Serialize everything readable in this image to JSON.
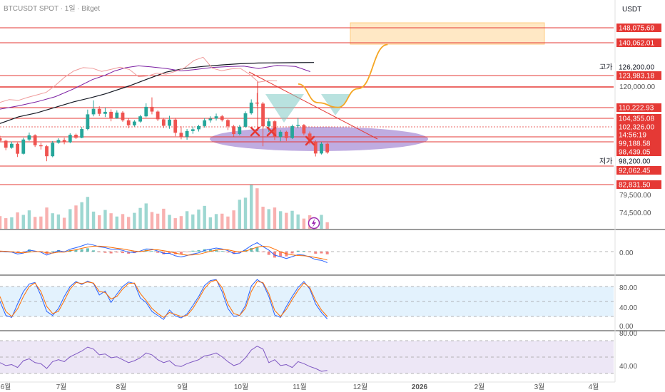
{
  "header": {
    "title": "BTCUSDT SPOT · 1일 · Bitget",
    "currency": "USDT"
  },
  "colors": {
    "up": "#26a69a",
    "down": "#ef5350",
    "level": "#e53935",
    "sma_long": "#131722",
    "sma_mid": "#7b1fa2",
    "sma_short": "#ef9a9a",
    "projection": "#f5a623",
    "zone": "#ffe0b2",
    "ellipse": "#9575cd",
    "shoulder": "#80cbc4",
    "macd": "#2962ff",
    "signal": "#ff6d00",
    "stoch_k": "#2962ff",
    "stoch_d": "#ff6d00",
    "rsi": "#7e57c2",
    "stoch_bg": "#e3f2fd",
    "rsi_bg": "#ede7f6",
    "label_dark": "#131722"
  },
  "chart_data": {
    "type": "candlestick",
    "x_range": [
      "2025-05-28",
      "2026-04-08"
    ],
    "y_range_price": [
      72000,
      152000
    ],
    "candles": [
      [
        "2025-05-28",
        108000,
        109000,
        106800,
        107000
      ],
      [
        "2025-05-31",
        107000,
        107400,
        103200,
        104200
      ],
      [
        "2025-06-03",
        104200,
        106700,
        103800,
        105800
      ],
      [
        "2025-06-06",
        105800,
        106300,
        100500,
        101800
      ],
      [
        "2025-06-09",
        101800,
        108200,
        101500,
        107500
      ],
      [
        "2025-06-12",
        107500,
        110300,
        106900,
        109200
      ],
      [
        "2025-06-15",
        109200,
        109600,
        104500,
        105200
      ],
      [
        "2025-06-18",
        105200,
        106200,
        103500,
        104800
      ],
      [
        "2025-06-21",
        104800,
        105300,
        98800,
        100800
      ],
      [
        "2025-06-24",
        100800,
        106900,
        100400,
        106200
      ],
      [
        "2025-06-27",
        106200,
        108000,
        105800,
        107300
      ],
      [
        "2025-06-30",
        107300,
        108200,
        105600,
        106400
      ],
      [
        "2025-07-03",
        106400,
        110000,
        106000,
        109400
      ],
      [
        "2025-07-06",
        109400,
        109900,
        107700,
        108200
      ],
      [
        "2025-07-09",
        108200,
        112500,
        108000,
        111700
      ],
      [
        "2025-07-12",
        111700,
        119500,
        111200,
        117600
      ],
      [
        "2025-07-15",
        117600,
        123200,
        116800,
        119800
      ],
      [
        "2025-07-18",
        119800,
        120800,
        116900,
        117800
      ],
      [
        "2025-07-21",
        117800,
        120200,
        116500,
        118600
      ],
      [
        "2025-07-24",
        118600,
        119600,
        114800,
        116100
      ],
      [
        "2025-07-27",
        116100,
        119200,
        115800,
        118300
      ],
      [
        "2025-07-30",
        118300,
        118900,
        114600,
        115200
      ],
      [
        "2025-08-02",
        115200,
        115900,
        112000,
        113200
      ],
      [
        "2025-08-05",
        113200,
        115300,
        112700,
        114700
      ],
      [
        "2025-08-08",
        114700,
        117400,
        114300,
        116800
      ],
      [
        "2025-08-11",
        116800,
        122000,
        116400,
        120600
      ],
      [
        "2025-08-14",
        120600,
        124400,
        117600,
        118700
      ],
      [
        "2025-08-17",
        118700,
        119200,
        114900,
        115600
      ],
      [
        "2025-08-20",
        115600,
        116200,
        112100,
        113000
      ],
      [
        "2025-08-23",
        113000,
        117000,
        111800,
        115500
      ],
      [
        "2025-08-26",
        115500,
        116200,
        108800,
        110200
      ],
      [
        "2025-08-29",
        110200,
        112800,
        107600,
        108600
      ],
      [
        "2025-09-01",
        108600,
        111700,
        107400,
        110900
      ],
      [
        "2025-09-04",
        110900,
        112700,
        109800,
        111600
      ],
      [
        "2025-09-07",
        111600,
        113400,
        110700,
        112900
      ],
      [
        "2025-09-10",
        112900,
        116100,
        112300,
        115200
      ],
      [
        "2025-09-13",
        115200,
        116800,
        114300,
        115900
      ],
      [
        "2025-09-16",
        115900,
        117900,
        115100,
        116800
      ],
      [
        "2025-09-19",
        116800,
        117400,
        114700,
        115300
      ],
      [
        "2025-09-22",
        115300,
        115700,
        111300,
        112800
      ],
      [
        "2025-09-25",
        112800,
        113400,
        108700,
        109700
      ],
      [
        "2025-09-28",
        109700,
        113300,
        109200,
        112600
      ],
      [
        "2025-10-01",
        112600,
        118800,
        112200,
        118000
      ],
      [
        "2025-10-04",
        118000,
        123600,
        117500,
        122300
      ],
      [
        "2025-10-07",
        122300,
        126200,
        120800,
        121900
      ],
      [
        "2025-10-10",
        121900,
        122600,
        104800,
        112800
      ],
      [
        "2025-10-13",
        112800,
        116000,
        110600,
        114800
      ],
      [
        "2025-10-16",
        114800,
        115200,
        107300,
        108500
      ],
      [
        "2025-10-19",
        108500,
        111300,
        106800,
        110600
      ],
      [
        "2025-10-22",
        110600,
        111000,
        106900,
        108100
      ],
      [
        "2025-10-25",
        108100,
        113500,
        107700,
        112900
      ],
      [
        "2025-10-28",
        112900,
        116200,
        112000,
        113300
      ],
      [
        "2025-10-31",
        113300,
        113700,
        109200,
        109900
      ],
      [
        "2025-11-03",
        109900,
        110700,
        105600,
        106500
      ],
      [
        "2025-11-06",
        106500,
        107200,
        100700,
        101900
      ],
      [
        "2025-11-09",
        101900,
        106500,
        101500,
        105800
      ],
      [
        "2025-11-12",
        105800,
        106200,
        101800,
        102326
      ]
    ],
    "volume": [
      31,
      26,
      28,
      40,
      34,
      45,
      29,
      30,
      52,
      38,
      35,
      27,
      48,
      57,
      65,
      78,
      42,
      33,
      46,
      38,
      30,
      36,
      29,
      39,
      51,
      62,
      41,
      37,
      49,
      34,
      26,
      31,
      43,
      35,
      47,
      56,
      28,
      36,
      37,
      30,
      45,
      71,
      76,
      108,
      99,
      54,
      48,
      52,
      43,
      39,
      44,
      35,
      25,
      33,
      21,
      34,
      16
    ],
    "sma_long": [
      [
        0,
        0.952
      ],
      [
        10,
        0.885
      ],
      [
        20,
        0.845
      ],
      [
        30,
        0.79
      ],
      [
        40,
        0.734
      ],
      [
        50,
        0.69
      ],
      [
        57,
        0.655
      ],
      [
        70,
        0.575
      ],
      [
        80,
        0.505
      ],
      [
        90,
        0.437
      ],
      [
        100,
        0.4
      ],
      [
        110,
        0.38
      ],
      [
        120,
        0.365
      ],
      [
        130,
        0.353
      ],
      [
        140,
        0.346
      ],
      [
        160,
        0.342
      ],
      [
        170,
        0.341
      ]
    ],
    "sma_mid": [
      [
        0,
        0.808
      ],
      [
        10,
        0.775
      ],
      [
        20,
        0.734
      ],
      [
        30,
        0.683
      ],
      [
        40,
        0.604
      ],
      [
        50,
        0.512
      ],
      [
        57,
        0.468
      ],
      [
        62,
        0.426
      ],
      [
        68,
        0.393
      ],
      [
        75,
        0.374
      ],
      [
        82,
        0.385
      ],
      [
        90,
        0.401
      ],
      [
        98,
        0.425
      ],
      [
        105,
        0.412
      ],
      [
        115,
        0.39
      ],
      [
        125,
        0.38
      ],
      [
        132,
        0.377
      ],
      [
        140,
        0.401
      ],
      [
        150,
        0.37
      ],
      [
        160,
        0.381
      ],
      [
        168,
        0.432
      ]
    ],
    "sma_short": [
      [
        0,
        0.74
      ],
      [
        5,
        0.712
      ],
      [
        10,
        0.72
      ],
      [
        15,
        0.69
      ],
      [
        20,
        0.665
      ],
      [
        25,
        0.64
      ],
      [
        30,
        0.57
      ],
      [
        35,
        0.488
      ],
      [
        40,
        0.425
      ],
      [
        45,
        0.392
      ],
      [
        50,
        0.398
      ],
      [
        55,
        0.43
      ],
      [
        60,
        0.41
      ],
      [
        65,
        0.388
      ],
      [
        70,
        0.41
      ],
      [
        75,
        0.483
      ],
      [
        80,
        0.475
      ],
      [
        85,
        0.448
      ],
      [
        90,
        0.457
      ],
      [
        95,
        0.43
      ],
      [
        100,
        0.394
      ],
      [
        105,
        0.32
      ],
      [
        110,
        0.288
      ],
      [
        115,
        0.398
      ],
      [
        120,
        0.423
      ],
      [
        125,
        0.405
      ],
      [
        130,
        0.398
      ],
      [
        135,
        0.457
      ],
      [
        140,
        0.538
      ],
      [
        145,
        0.522
      ],
      [
        150,
        0.525
      ]
    ],
    "macd": [
      0.1,
      -0.1,
      -0.2,
      -0.8,
      -0.5,
      0.5,
      0.2,
      -0.2,
      -1.2,
      -0.4,
      0.3,
      -0.1,
      0.8,
      1.3,
      1.9,
      2.6,
      2.2,
      1.6,
      1.3,
      0.8,
      0.8,
      0.4,
      -0.2,
      -0.3,
      0.2,
      0.9,
      0.8,
      0.2,
      -0.6,
      -0.6,
      -1.4,
      -1.8,
      -1.3,
      -0.8,
      -0.4,
      0.4,
      0.8,
      1.2,
      0.9,
      0.3,
      -0.6,
      -0.5,
      0.7,
      2.0,
      3.0,
      1.7,
      0.5,
      -1.2,
      -1.7,
      -2.3,
      -1.7,
      -1.0,
      -1.2,
      -1.8,
      -2.7,
      -2.9,
      -3.7
    ],
    "signal": [
      0.2,
      0.1,
      -0.1,
      -0.3,
      -0.4,
      -0.2,
      0.0,
      0.0,
      -0.4,
      -0.5,
      -0.2,
      -0.2,
      0.3,
      0.6,
      1.1,
      1.5,
      1.8,
      1.8,
      1.7,
      1.4,
      1.1,
      0.9,
      0.5,
      0.2,
      0.0,
      0.3,
      0.6,
      0.6,
      0.3,
      0.0,
      -0.5,
      -0.9,
      -1.2,
      -1.1,
      -0.9,
      -0.4,
      0.1,
      0.5,
      0.7,
      0.6,
      0.2,
      -0.1,
      0.2,
      0.8,
      1.5,
      1.8,
      1.6,
      0.8,
      -0.1,
      -0.7,
      -1.1,
      -1.3,
      -1.4,
      -1.6,
      -2.0,
      -2.3,
      -2.8
    ],
    "stoch_k": [
      50,
      22,
      18,
      45,
      70,
      85,
      88,
      62,
      30,
      22,
      36,
      60,
      80,
      90,
      84,
      91,
      86,
      63,
      71,
      48,
      65,
      80,
      89,
      86,
      57,
      48,
      30,
      22,
      14,
      33,
      21,
      17,
      25,
      42,
      60,
      82,
      92,
      94,
      70,
      36,
      20,
      22,
      42,
      81,
      94,
      86,
      60,
      23,
      18,
      40,
      60,
      78,
      90,
      75,
      45,
      28,
      15
    ],
    "stoch_d": [
      60,
      30,
      20,
      35,
      60,
      80,
      87,
      70,
      40,
      26,
      30,
      52,
      75,
      88,
      86,
      89,
      87,
      70,
      68,
      55,
      60,
      75,
      86,
      87,
      66,
      52,
      36,
      26,
      18,
      28,
      24,
      20,
      22,
      36,
      55,
      76,
      89,
      93,
      78,
      45,
      26,
      22,
      36,
      70,
      90,
      88,
      66,
      32,
      20,
      34,
      54,
      72,
      87,
      78,
      52,
      33,
      20
    ],
    "rsi": [
      50,
      47,
      48,
      45,
      52,
      54,
      50,
      49,
      44,
      51,
      53,
      51,
      56,
      59,
      62,
      66,
      64,
      58,
      59,
      55,
      56,
      53,
      50,
      52,
      55,
      60,
      58,
      53,
      50,
      52,
      47,
      46,
      49,
      51,
      53,
      57,
      58,
      60,
      56,
      51,
      47,
      49,
      55,
      63,
      67,
      64,
      50,
      53,
      47,
      48,
      45,
      51,
      49,
      46,
      44,
      41,
      42
    ],
    "projection_path": [
      [
        0.6,
        0.415
      ],
      [
        0.64,
        0.555
      ],
      [
        0.68,
        0.59
      ],
      [
        0.72,
        0.45
      ],
      [
        0.78,
        0.12
      ]
    ],
    "y_labels": [
      "120,000.00",
      "79,500.00",
      "74,500.00",
      "0.00",
      "80.00",
      "40.00",
      "0.00",
      "80.00",
      "40.00"
    ],
    "x_labels": [
      "6월",
      "7월",
      "8월",
      "9월",
      "10월",
      "11월",
      "12월",
      "2026",
      "2월",
      "3월",
      "4월"
    ],
    "levels": [
      {
        "value": "148,075.69",
        "kind": "red"
      },
      {
        "value": "140,062.01",
        "kind": "red"
      },
      {
        "value": "126,200.00",
        "kind": "plain",
        "prefix": "고가"
      },
      {
        "value": "123,983.18",
        "kind": "red"
      },
      {
        "value": "110,222.93",
        "kind": "red"
      },
      {
        "value": "104,355.08",
        "kind": "red"
      },
      {
        "value": "102,326.00",
        "kind": "red"
      },
      {
        "value": "14:56:19",
        "kind": "red"
      },
      {
        "value": "99,188.58",
        "kind": "red"
      },
      {
        "value": "98,439.05",
        "kind": "red"
      },
      {
        "value": "98,200.00",
        "kind": "plain",
        "prefix": "저가"
      },
      {
        "value": "92,062.45",
        "kind": "red"
      },
      {
        "value": "82,831.50",
        "kind": "red"
      }
    ],
    "legend": "none",
    "grid": false
  }
}
